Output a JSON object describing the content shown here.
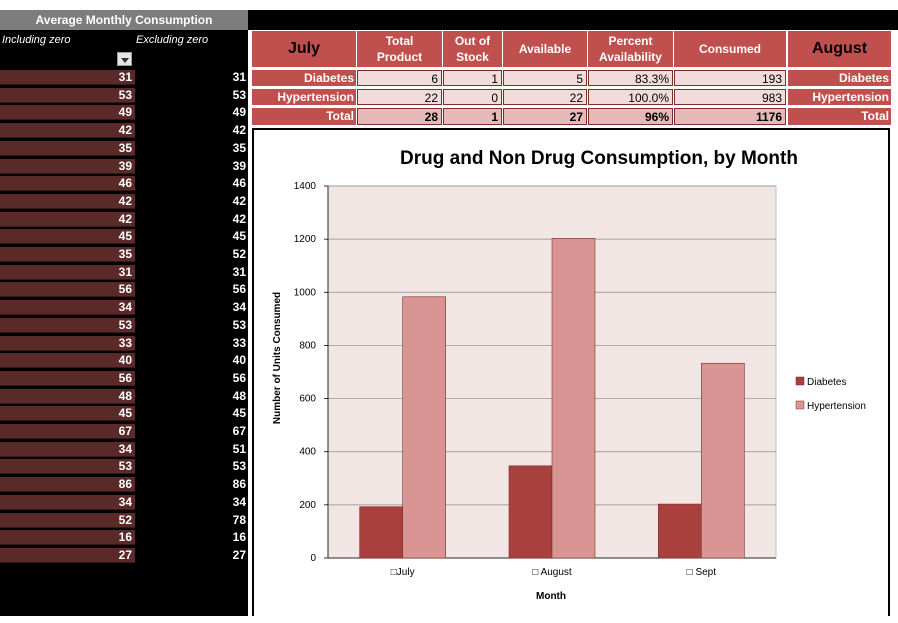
{
  "summary": {
    "header": "Average Monthly Consumption",
    "col_including": "Including zero",
    "col_excluding": "Excluding zero",
    "rows": [
      {
        "inc": "31",
        "exc": "31"
      },
      {
        "inc": "53",
        "exc": "53"
      },
      {
        "inc": "49",
        "exc": "49"
      },
      {
        "inc": "42",
        "exc": "42"
      },
      {
        "inc": "35",
        "exc": "35"
      },
      {
        "inc": "39",
        "exc": "39"
      },
      {
        "inc": "46",
        "exc": "46"
      },
      {
        "inc": "42",
        "exc": "42"
      },
      {
        "inc": "42",
        "exc": "42"
      },
      {
        "inc": "45",
        "exc": "45"
      },
      {
        "inc": "35",
        "exc": "52"
      },
      {
        "inc": "31",
        "exc": "31"
      },
      {
        "inc": "56",
        "exc": "56"
      },
      {
        "inc": "34",
        "exc": "34"
      },
      {
        "inc": "53",
        "exc": "53"
      },
      {
        "inc": "33",
        "exc": "33"
      },
      {
        "inc": "40",
        "exc": "40"
      },
      {
        "inc": "56",
        "exc": "56"
      },
      {
        "inc": "48",
        "exc": "48"
      },
      {
        "inc": "45",
        "exc": "45"
      },
      {
        "inc": "67",
        "exc": "67"
      },
      {
        "inc": "34",
        "exc": "51"
      },
      {
        "inc": "53",
        "exc": "53"
      },
      {
        "inc": "86",
        "exc": "86"
      },
      {
        "inc": "34",
        "exc": "34"
      },
      {
        "inc": "52",
        "exc": "78"
      },
      {
        "inc": "16",
        "exc": "16"
      },
      {
        "inc": "27",
        "exc": "27"
      }
    ]
  },
  "table": {
    "month": "July",
    "headers": {
      "total_product": [
        "Total",
        "Product"
      ],
      "out_of_stock": [
        "Out of",
        "Stock"
      ],
      "available": "Available",
      "percent": [
        "Percent",
        "Availability"
      ],
      "consumed": "Consumed"
    },
    "next_month": "August",
    "rows": [
      {
        "label": "Diabetes",
        "total": "6",
        "out": "1",
        "avail": "5",
        "pct": "83.3%",
        "consumed": "193",
        "next_label": "Diabetes"
      },
      {
        "label": "Hypertension",
        "total": "22",
        "out": "0",
        "avail": "22",
        "pct": "100.0%",
        "consumed": "983",
        "next_label": "Hypertension"
      }
    ],
    "total_row": {
      "label": "Total",
      "total": "28",
      "out": "1",
      "avail": "27",
      "pct": "96%",
      "consumed": "1176",
      "next_label": "Total"
    }
  },
  "chart_data": {
    "type": "bar",
    "title": "Drug and Non Drug Consumption, by Month",
    "xlabel": "Month",
    "ylabel": "Number of Units Consumed",
    "categories": [
      "July",
      "August",
      "Sept"
    ],
    "category_labels": [
      "□July",
      "□ August",
      "□ Sept"
    ],
    "series": [
      {
        "name": "Diabetes",
        "values": [
          193,
          347,
          203
        ],
        "color": "#a8413e"
      },
      {
        "name": "Hypertension",
        "values": [
          983,
          1203,
          733
        ],
        "color": "#d99593"
      }
    ],
    "ylim": [
      0,
      1400
    ],
    "yticks": [
      0,
      200,
      400,
      600,
      800,
      1000,
      1200,
      1400
    ],
    "grid": true,
    "plot_bg": "#f2e6e5",
    "legend": "right"
  }
}
